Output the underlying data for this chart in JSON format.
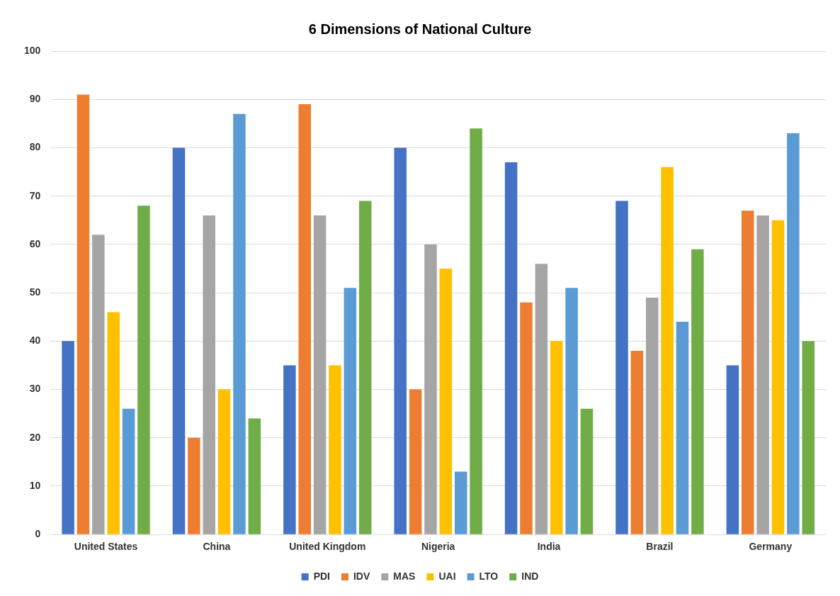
{
  "chart_data": {
    "type": "bar",
    "title": "6 Dimensions of National Culture",
    "categories": [
      "United States",
      "China",
      "United Kingdom",
      "Nigeria",
      "India",
      "Brazil",
      "Germany"
    ],
    "series": [
      {
        "name": "PDI",
        "color": "#4472c4",
        "values": [
          40,
          80,
          35,
          80,
          77,
          69,
          35
        ]
      },
      {
        "name": "IDV",
        "color": "#ed7d31",
        "values": [
          91,
          20,
          89,
          30,
          48,
          38,
          67
        ]
      },
      {
        "name": "MAS",
        "color": "#a5a5a5",
        "values": [
          62,
          66,
          66,
          60,
          56,
          49,
          66
        ]
      },
      {
        "name": "UAI",
        "color": "#ffc000",
        "values": [
          46,
          30,
          35,
          55,
          40,
          76,
          65
        ]
      },
      {
        "name": "LTO",
        "color": "#5b9bd5",
        "values": [
          26,
          87,
          51,
          13,
          51,
          44,
          83
        ]
      },
      {
        "name": "IND",
        "color": "#70ad47",
        "values": [
          68,
          24,
          69,
          84,
          26,
          59,
          40
        ]
      }
    ],
    "ylim": [
      0,
      100
    ],
    "yticks": [
      0,
      10,
      20,
      30,
      40,
      50,
      60,
      70,
      80,
      90,
      100
    ],
    "grid": "y",
    "legend": "bottom"
  }
}
